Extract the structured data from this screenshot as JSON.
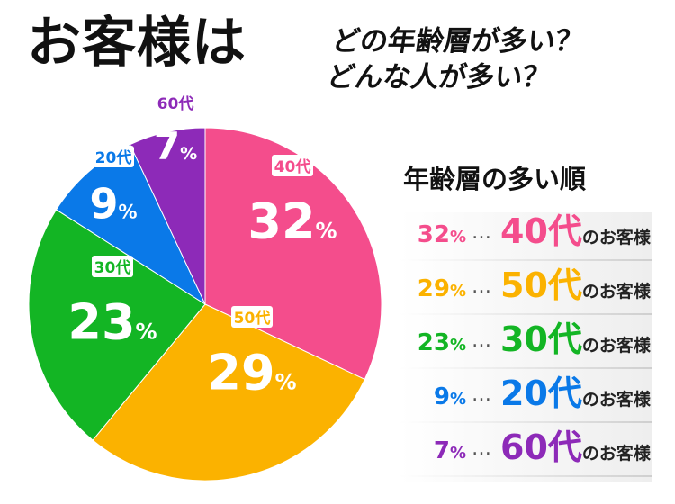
{
  "header": {
    "title": "お客様は",
    "subtitle_line1": "どの年齢層が多い？",
    "subtitle_line2": "どんな人が多い？"
  },
  "chart_data": {
    "type": "pie",
    "start": "top, clockwise",
    "slices": [
      {
        "label": "40代",
        "value": 32,
        "display": "32",
        "color": "#f44d8c"
      },
      {
        "label": "50代",
        "value": 29,
        "display": "29",
        "color": "#fbb200"
      },
      {
        "label": "30代",
        "value": 23,
        "display": "23",
        "color": "#13b524"
      },
      {
        "label": "20代",
        "value": 9,
        "display": "9",
        "color": "#0a79e8"
      },
      {
        "label": "60代",
        "value": 7,
        "display": "7",
        "color": "#8d2ab8"
      }
    ],
    "percent_sign": "%"
  },
  "ranking": {
    "title": "年齢層の多い順",
    "dots": "…",
    "suffix": "のお客様",
    "percent_sign": "%",
    "items": [
      {
        "pct": "32",
        "age": "40代",
        "color": "#f44d8c"
      },
      {
        "pct": "29",
        "age": "50代",
        "color": "#fbb200"
      },
      {
        "pct": "23",
        "age": "30代",
        "color": "#13b524"
      },
      {
        "pct": "9",
        "age": "20代",
        "color": "#0a79e8"
      },
      {
        "pct": "7",
        "age": "60代",
        "color": "#8d2ab8"
      }
    ]
  }
}
